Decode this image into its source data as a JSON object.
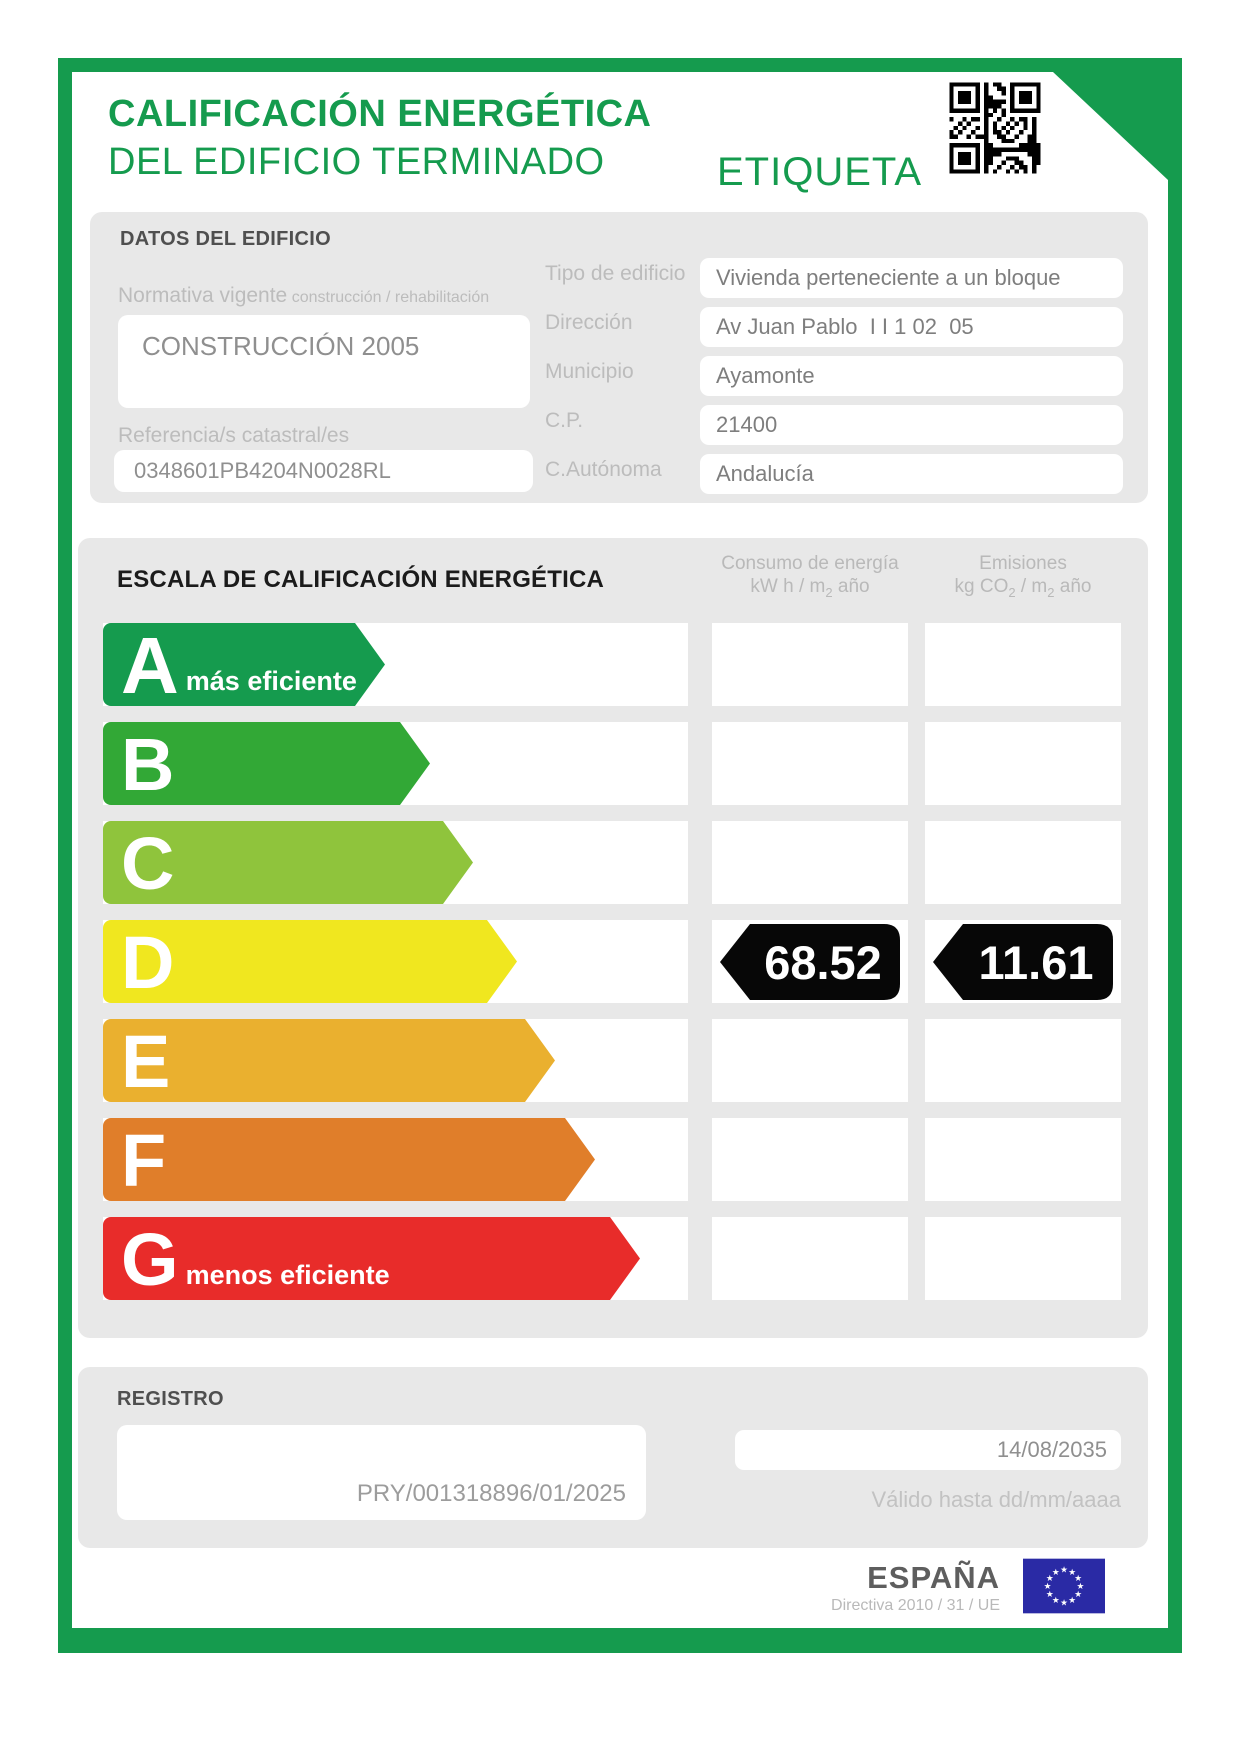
{
  "header": {
    "title_line1": "CALIFICACIÓN ENERGÉTICA",
    "title_line2": "DEL EDIFICIO TERMINADO",
    "etiqueta_label": "ETIQUETA"
  },
  "datos": {
    "section_title": "DATOS DEL EDIFICIO",
    "normativa": {
      "label": "Normativa vigente",
      "sublabel": "construcción / rehabilitación",
      "value": "CONSTRUCCIÓN 2005"
    },
    "referencia": {
      "label": "Referencia/s catastral/es",
      "value": "0348601PB4204N0028RL"
    },
    "fields": [
      {
        "label": "Tipo de edificio",
        "value": "Vivienda perteneciente a un bloque"
      },
      {
        "label": "Dirección",
        "value": "Av Juan Pablo  I I 1 02  05"
      },
      {
        "label": "Municipio",
        "value": "Ayamonte"
      },
      {
        "label": "C.P.",
        "value": "21400"
      },
      {
        "label": "C.Autónoma",
        "value": "Andalucía"
      }
    ]
  },
  "escala": {
    "section_title": "ESCALA DE CALIFICACIÓN ENERGÉTICA",
    "consumo_header": {
      "line1": "Consumo de energía",
      "unit_prefix": "kW h / m",
      "unit_sub": "2",
      "unit_suffix": " año"
    },
    "emisiones_header": {
      "line1": "Emisiones",
      "unit_prefix": "kg CO",
      "unit_sub1": "2",
      "unit_mid": " / m",
      "unit_sub2": "2",
      "unit_suffix": " año"
    },
    "ratings": [
      {
        "letter": "A",
        "note": "más eficiente",
        "color": "#159B4E"
      },
      {
        "letter": "B",
        "color": "#32A836"
      },
      {
        "letter": "C",
        "color": "#8FC43C"
      },
      {
        "letter": "D",
        "color": "#F0E71F"
      },
      {
        "letter": "E",
        "color": "#EAB02F"
      },
      {
        "letter": "F",
        "color": "#E07E2A"
      },
      {
        "letter": "G",
        "note": "menos eficiente",
        "color": "#E82C2A"
      }
    ],
    "rated_letter": "D",
    "consumo_value": "68.52",
    "emisiones_value": "11.61"
  },
  "registro": {
    "section_title": "REGISTRO",
    "registry_number": "PRY/001318896/01/2025",
    "valid_until_date": "14/08/2035",
    "valid_until_label": "Válido hasta dd/mm/aaaa"
  },
  "footer": {
    "country": "ESPAÑA",
    "directive": "Directiva 2010 / 31 / UE",
    "eu_flag_blue": "#2A2AA5"
  },
  "colors": {
    "accent_green": "#159B4E",
    "panel_grey": "#E8E8E8",
    "badge_black": "#070707"
  }
}
